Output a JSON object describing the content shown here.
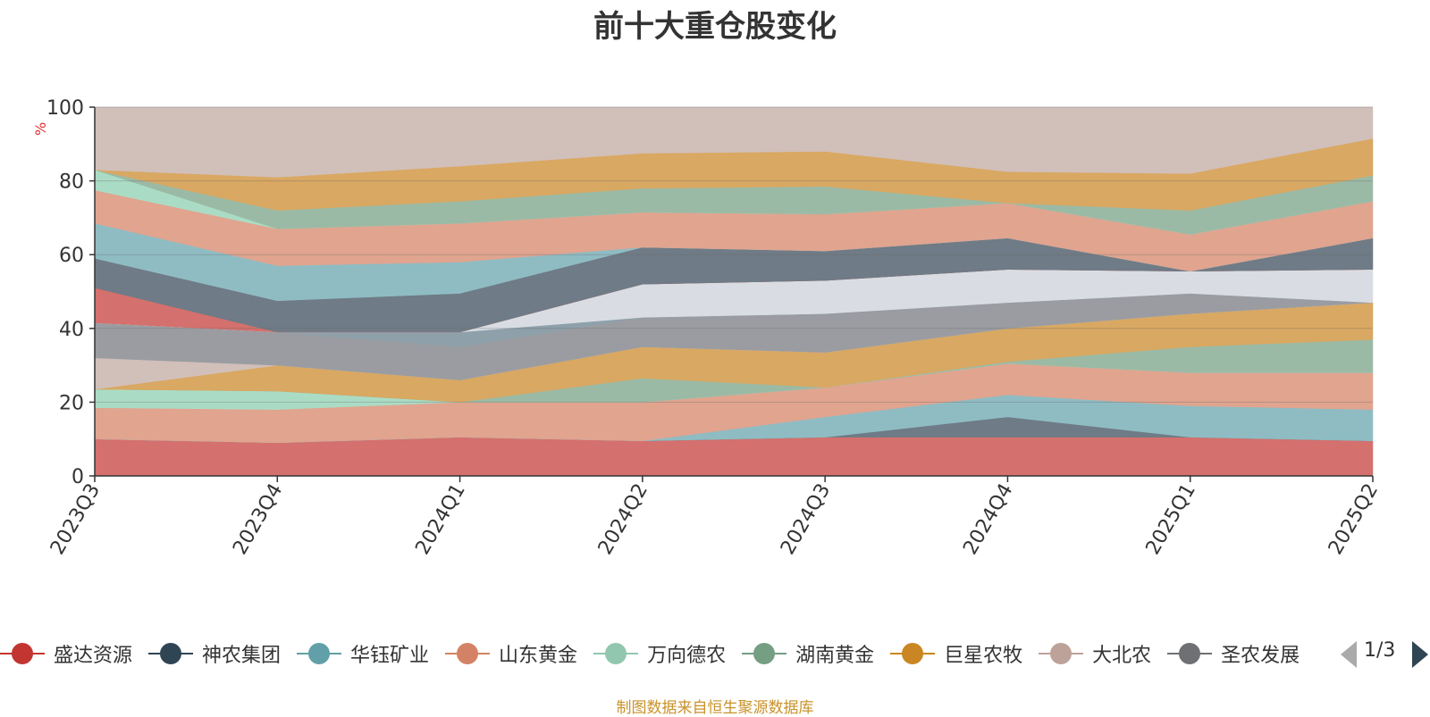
{
  "title": "前十大重仓股变化",
  "source": "制图数据来自恒生聚源数据库",
  "pager_text": "1/3",
  "chart_data": {
    "type": "area",
    "title": "前十大重仓股变化",
    "ylabel": "%",
    "ylim": [
      0,
      100
    ],
    "yticks": [
      0,
      20,
      40,
      60,
      80,
      100
    ],
    "grid": true,
    "legend_position": "bottom",
    "categories": [
      "2023Q3",
      "2023Q4",
      "2024Q1",
      "2024Q2",
      "2024Q3",
      "2024Q4",
      "2025Q1",
      "2025Q2"
    ],
    "layers": [
      {
        "color": "#d4706d",
        "lower": [
          0,
          0,
          0,
          0,
          0,
          0,
          0,
          0
        ],
        "upper": [
          10,
          9,
          10.5,
          9.5,
          10.5,
          10.5,
          10.5,
          9.5
        ]
      },
      {
        "color": "#6f7b86",
        "lower": [
          10,
          9,
          10.5,
          9.5,
          10.5,
          10.5,
          10.5,
          9.5
        ],
        "upper": [
          10,
          9,
          10.5,
          9.5,
          10.5,
          16,
          10.5,
          9.5
        ]
      },
      {
        "color": "#8fbcc3",
        "lower": [
          10,
          9,
          10.5,
          9.5,
          10.5,
          16,
          10.5,
          9.5
        ],
        "upper": [
          10,
          9,
          10.5,
          9.5,
          16,
          22,
          19,
          18
        ]
      },
      {
        "color": "#e0a48f",
        "lower": [
          10,
          9,
          10.5,
          9.5,
          16,
          22,
          19,
          18
        ],
        "upper": [
          18.5,
          18,
          20,
          20,
          24,
          30.5,
          28,
          28
        ]
      },
      {
        "color": "#aadcc5",
        "lower": [
          18.5,
          18,
          20,
          20,
          24,
          30.5,
          28,
          28
        ],
        "upper": [
          23.5,
          23,
          20,
          20,
          24,
          30.5,
          28,
          28
        ]
      },
      {
        "color": "#9bbaa5",
        "lower": [
          23.5,
          23,
          20,
          20,
          24,
          30.5,
          28,
          28
        ],
        "upper": [
          23.5,
          23,
          20,
          26.5,
          24,
          31,
          35,
          37
        ]
      },
      {
        "color": "#d9a862",
        "lower": [
          23.5,
          23,
          20,
          26.5,
          24,
          31,
          35,
          37
        ],
        "upper": [
          23.5,
          30,
          26,
          35,
          33.5,
          40,
          44,
          47
        ]
      },
      {
        "color": "#d1bfb9",
        "lower": [
          23.5,
          30,
          26,
          35,
          33.5,
          40,
          44,
          47
        ],
        "upper": [
          32,
          30,
          26,
          35,
          33.5,
          40,
          44,
          47
        ]
      },
      {
        "color": "#9a9ca1",
        "lower": [
          32,
          30,
          26,
          35,
          33.5,
          40,
          44,
          47
        ],
        "upper": [
          41.5,
          39,
          35,
          43,
          44,
          47,
          49.5,
          47
        ]
      },
      {
        "color": "#8ea1ab",
        "lower": [
          41.5,
          39,
          35,
          43,
          44,
          47,
          49.5,
          47
        ],
        "upper": [
          41.5,
          39,
          39,
          43,
          44,
          47,
          49.5,
          47
        ]
      },
      {
        "color": "#d9dde3",
        "lower": [
          41.5,
          39,
          39,
          43,
          44,
          47,
          49.5,
          47
        ],
        "upper": [
          41.5,
          39,
          39,
          52,
          53,
          56,
          55.5,
          56
        ]
      },
      {
        "color": "#d4706d",
        "lower": [
          41.5,
          39,
          39,
          52,
          53,
          56,
          55.5,
          56
        ],
        "upper": [
          51,
          39,
          39,
          52,
          53,
          56,
          55.5,
          56
        ]
      },
      {
        "color": "#6f7b86",
        "lower": [
          51,
          39,
          39,
          52,
          53,
          56,
          55.5,
          56
        ],
        "upper": [
          59,
          47.5,
          49.5,
          62,
          61,
          64.5,
          55.5,
          64.5
        ]
      },
      {
        "color": "#8fbcc3",
        "lower": [
          59,
          47.5,
          49.5,
          62,
          61,
          64.5,
          55.5,
          64.5
        ],
        "upper": [
          68.5,
          57,
          58,
          62,
          61,
          64.5,
          55.5,
          64.5
        ]
      },
      {
        "color": "#e0a48f",
        "lower": [
          68.5,
          57,
          58,
          62,
          61,
          64.5,
          55.5,
          64.5
        ],
        "upper": [
          77.5,
          67,
          68.5,
          71.5,
          71,
          74,
          65.5,
          74.5
        ]
      },
      {
        "color": "#aadcc5",
        "lower": [
          77.5,
          67,
          68.5,
          71.5,
          71,
          74,
          65.5,
          74.5
        ],
        "upper": [
          83,
          67,
          68.5,
          71.5,
          71,
          74,
          65.5,
          74.5
        ]
      },
      {
        "color": "#9bbaa5",
        "lower": [
          83,
          67,
          68.5,
          71.5,
          71,
          74,
          65.5,
          74.5
        ],
        "upper": [
          83,
          72,
          74.5,
          78,
          78.5,
          74,
          72,
          81.5
        ]
      },
      {
        "color": "#d9a862",
        "lower": [
          83,
          72,
          74.5,
          78,
          78.5,
          74,
          72,
          81.5
        ],
        "upper": [
          83,
          81,
          84,
          87.5,
          88,
          82.5,
          82,
          91.5
        ]
      },
      {
        "color": "#d1bfb9",
        "lower": [
          83,
          81,
          84,
          87.5,
          88,
          82.5,
          82,
          91.5
        ],
        "upper": [
          100,
          100,
          100,
          100,
          100,
          100,
          100,
          100
        ]
      }
    ],
    "legend": [
      {
        "name": "盛达资源",
        "color": "#c23531"
      },
      {
        "name": "神农集团",
        "color": "#2f4554"
      },
      {
        "name": "华钰矿业",
        "color": "#61a0a8"
      },
      {
        "name": "山东黄金",
        "color": "#d48265"
      },
      {
        "name": "万向德农",
        "color": "#91c7ae"
      },
      {
        "name": "湖南黄金",
        "color": "#749f83"
      },
      {
        "name": "巨星农牧",
        "color": "#ca8622"
      },
      {
        "name": "大北农",
        "color": "#bda29a"
      },
      {
        "name": "圣农发展",
        "color": "#6e7074"
      }
    ]
  }
}
